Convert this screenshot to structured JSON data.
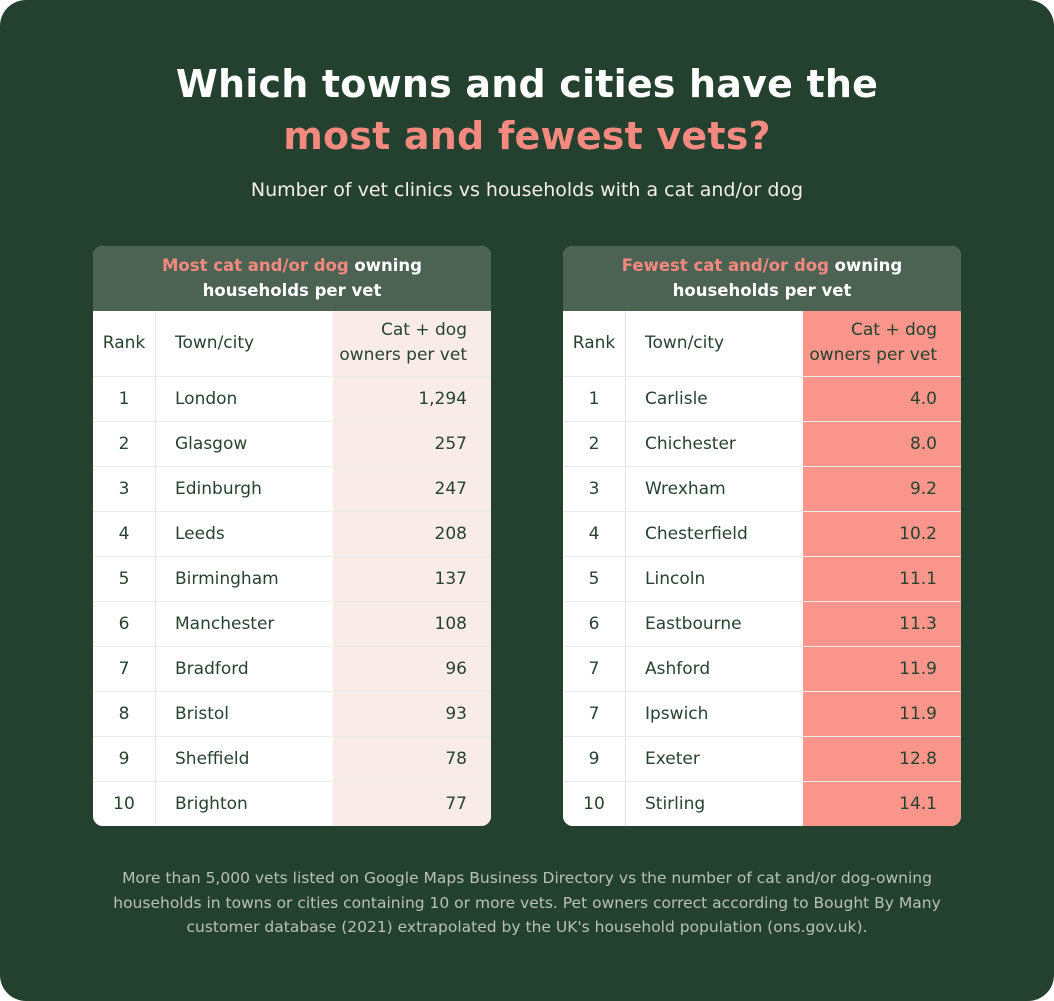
{
  "header": {
    "title_line1": "Which towns and cities have the",
    "title_line2": "most and fewest vets?",
    "subtitle": "Number of vet clinics vs households with a cat and/or dog"
  },
  "footnote": "More than 5,000 vets listed on Google Maps Business Directory vs the number of cat and/or dog-owning households in towns or cities containing 10 or more vets. Pet owners correct according to Bought By Many customer database (2021) extrapolated by the UK's household population (ons.gov.uk).",
  "colors": {
    "background": "#24402F",
    "band_green": "#4C6253",
    "accent_coral": "#F4897F",
    "coral_column": "#F9958B",
    "light_pink_column": "#F8EBE8",
    "table_text_green": "#27432F",
    "footnote_text": "#B7C1B4"
  },
  "chart_data": [
    {
      "type": "table",
      "title": "Most cat and/or dog owning households per vet",
      "title_accent": "Most cat and/or dog",
      "title_rest": " owning",
      "title_line2": "households per vet",
      "columns": [
        "Rank",
        "Town/city",
        "Cat + dog owners per vet"
      ],
      "value_header_lines": [
        "Cat + dog",
        "owners per vet"
      ],
      "rows": [
        [
          "1",
          "London",
          "1,294"
        ],
        [
          "2",
          "Glasgow",
          "257"
        ],
        [
          "3",
          "Edinburgh",
          "247"
        ],
        [
          "4",
          "Leeds",
          "208"
        ],
        [
          "5",
          "Birmingham",
          "137"
        ],
        [
          "6",
          "Manchester",
          "108"
        ],
        [
          "7",
          "Bradford",
          "96"
        ],
        [
          "8",
          "Bristol",
          "93"
        ],
        [
          "9",
          "Sheffield",
          "78"
        ],
        [
          "10",
          "Brighton",
          "77"
        ]
      ]
    },
    {
      "type": "table",
      "title": "Fewest cat and/or dog owning households per vet",
      "title_accent": "Fewest cat and/or dog",
      "title_rest": " owning",
      "title_line2": "households per vet",
      "columns": [
        "Rank",
        "Town/city",
        "Cat + dog owners per vet"
      ],
      "value_header_lines": [
        "Cat + dog",
        "owners per vet"
      ],
      "rows": [
        [
          "1",
          "Carlisle",
          "4.0"
        ],
        [
          "2",
          "Chichester",
          "8.0"
        ],
        [
          "3",
          "Wrexham",
          "9.2"
        ],
        [
          "4",
          "Chesterfield",
          "10.2"
        ],
        [
          "5",
          "Lincoln",
          "11.1"
        ],
        [
          "6",
          "Eastbourne",
          "11.3"
        ],
        [
          "7",
          "Ashford",
          "11.9"
        ],
        [
          "7",
          "Ipswich",
          "11.9"
        ],
        [
          "9",
          "Exeter",
          "12.8"
        ],
        [
          "10",
          "Stirling",
          "14.1"
        ]
      ]
    }
  ]
}
